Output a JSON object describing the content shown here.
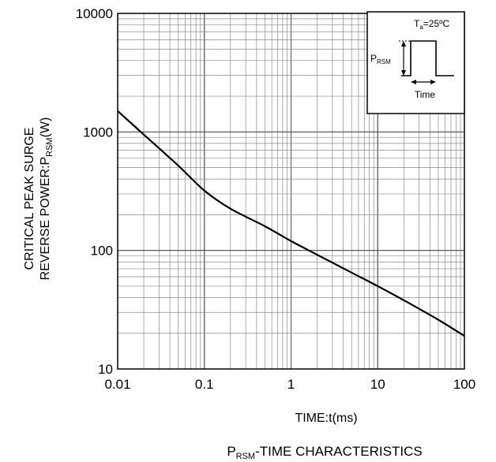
{
  "chart_data": {
    "type": "line",
    "x_scale": "log",
    "y_scale": "log",
    "xlim": [
      0.01,
      100
    ],
    "ylim": [
      10,
      10000
    ],
    "grid": true,
    "xticks": [
      "0.01",
      "0.1",
      "1",
      "10",
      "100"
    ],
    "yticks": [
      "10",
      "100",
      "1000",
      "10000"
    ],
    "xlabel": "TIME:t(ms)",
    "ylabel_line1": "CRITICAL PEAK SURGE",
    "ylabel_line2_prefix": "REVERSE POWER:P",
    "ylabel_line2_sub": "RSM",
    "ylabel_line2_suffix": "(W)",
    "title_prefix": "P",
    "title_sub": "RSM",
    "title_suffix": "-TIME CHARACTERISTICS",
    "series": [
      {
        "x": [
          0.01,
          0.02,
          0.05,
          0.1,
          0.2,
          0.5,
          1,
          2,
          5,
          10,
          20,
          50,
          100
        ],
        "y": [
          1500,
          950,
          520,
          320,
          225,
          160,
          120,
          92,
          65,
          50,
          38,
          26,
          19
        ]
      }
    ],
    "inset": {
      "condition_prefix": "T",
      "condition_sub": "a",
      "condition_suffix": "=25ºC",
      "pulse_label_prefix": "P",
      "pulse_label_sub": "RSM",
      "time_label": "Time"
    }
  }
}
